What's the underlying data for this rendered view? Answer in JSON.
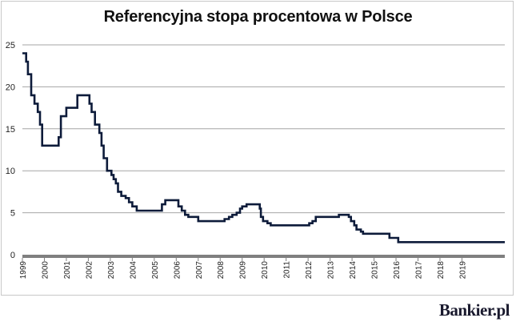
{
  "chart_data": {
    "type": "line",
    "title": "Referencyjna stopa procentowa w Polsce",
    "xlabel": "",
    "ylabel": "",
    "ylim": [
      0,
      25
    ],
    "yticks": [
      0,
      5,
      10,
      15,
      20,
      25
    ],
    "xticks": [
      "1999",
      "2000",
      "2001",
      "2002",
      "2003",
      "2004",
      "2005",
      "2006",
      "2007",
      "2008",
      "2009",
      "2010",
      "2011",
      "2012",
      "2013",
      "2014",
      "2015",
      "2016",
      "2017",
      "2018",
      "2019"
    ],
    "xrange": [
      1999.0,
      2020.95
    ],
    "grid": true,
    "line_color": "#0d1b3a",
    "series": [
      {
        "points": [
          [
            1999.0,
            24.0
          ],
          [
            1999.17,
            23.0
          ],
          [
            1999.25,
            21.5
          ],
          [
            1999.4,
            19.0
          ],
          [
            1999.55,
            18.0
          ],
          [
            1999.7,
            17.0
          ],
          [
            1999.8,
            15.5
          ],
          [
            1999.9,
            13.0
          ],
          [
            2000.55,
            13.0
          ],
          [
            2000.65,
            14.0
          ],
          [
            2000.75,
            16.5
          ],
          [
            2001.0,
            17.5
          ],
          [
            2001.45,
            17.5
          ],
          [
            2001.5,
            19.0
          ],
          [
            2001.95,
            19.0
          ],
          [
            2002.05,
            18.0
          ],
          [
            2002.15,
            17.0
          ],
          [
            2002.3,
            15.5
          ],
          [
            2002.5,
            14.5
          ],
          [
            2002.6,
            13.0
          ],
          [
            2002.7,
            11.5
          ],
          [
            2002.85,
            10.0
          ],
          [
            2003.05,
            9.5
          ],
          [
            2003.15,
            9.0
          ],
          [
            2003.25,
            8.5
          ],
          [
            2003.35,
            7.5
          ],
          [
            2003.5,
            7.0
          ],
          [
            2003.7,
            6.75
          ],
          [
            2003.85,
            6.25
          ],
          [
            2004.0,
            5.75
          ],
          [
            2004.2,
            5.25
          ],
          [
            2005.25,
            5.25
          ],
          [
            2005.35,
            6.0
          ],
          [
            2005.5,
            6.5
          ],
          [
            2006.0,
            6.5
          ],
          [
            2006.1,
            5.75
          ],
          [
            2006.25,
            5.25
          ],
          [
            2006.4,
            4.75
          ],
          [
            2006.55,
            4.5
          ],
          [
            2006.95,
            4.5
          ],
          [
            2007.0,
            4.0
          ],
          [
            2008.1,
            4.0
          ],
          [
            2008.2,
            4.25
          ],
          [
            2008.4,
            4.5
          ],
          [
            2008.55,
            4.75
          ],
          [
            2008.75,
            5.0
          ],
          [
            2008.9,
            5.5
          ],
          [
            2009.0,
            5.75
          ],
          [
            2009.2,
            6.0
          ],
          [
            2009.7,
            6.0
          ],
          [
            2009.8,
            5.5
          ],
          [
            2009.85,
            4.5
          ],
          [
            2009.95,
            4.0
          ],
          [
            2010.15,
            3.75
          ],
          [
            2010.3,
            3.5
          ],
          [
            2012.0,
            3.5
          ],
          [
            2012.05,
            3.75
          ],
          [
            2012.2,
            4.0
          ],
          [
            2012.35,
            4.5
          ],
          [
            2013.3,
            4.5
          ],
          [
            2013.4,
            4.75
          ],
          [
            2013.75,
            4.75
          ],
          [
            2013.85,
            4.5
          ],
          [
            2013.95,
            4.0
          ],
          [
            2014.1,
            3.5
          ],
          [
            2014.2,
            3.0
          ],
          [
            2014.4,
            2.75
          ],
          [
            2014.5,
            2.5
          ],
          [
            2015.65,
            2.5
          ],
          [
            2015.7,
            2.0
          ],
          [
            2016.05,
            2.0
          ],
          [
            2016.1,
            1.5
          ],
          [
            2020.95,
            1.5
          ]
        ]
      }
    ]
  },
  "watermark": "Bankier.pl"
}
